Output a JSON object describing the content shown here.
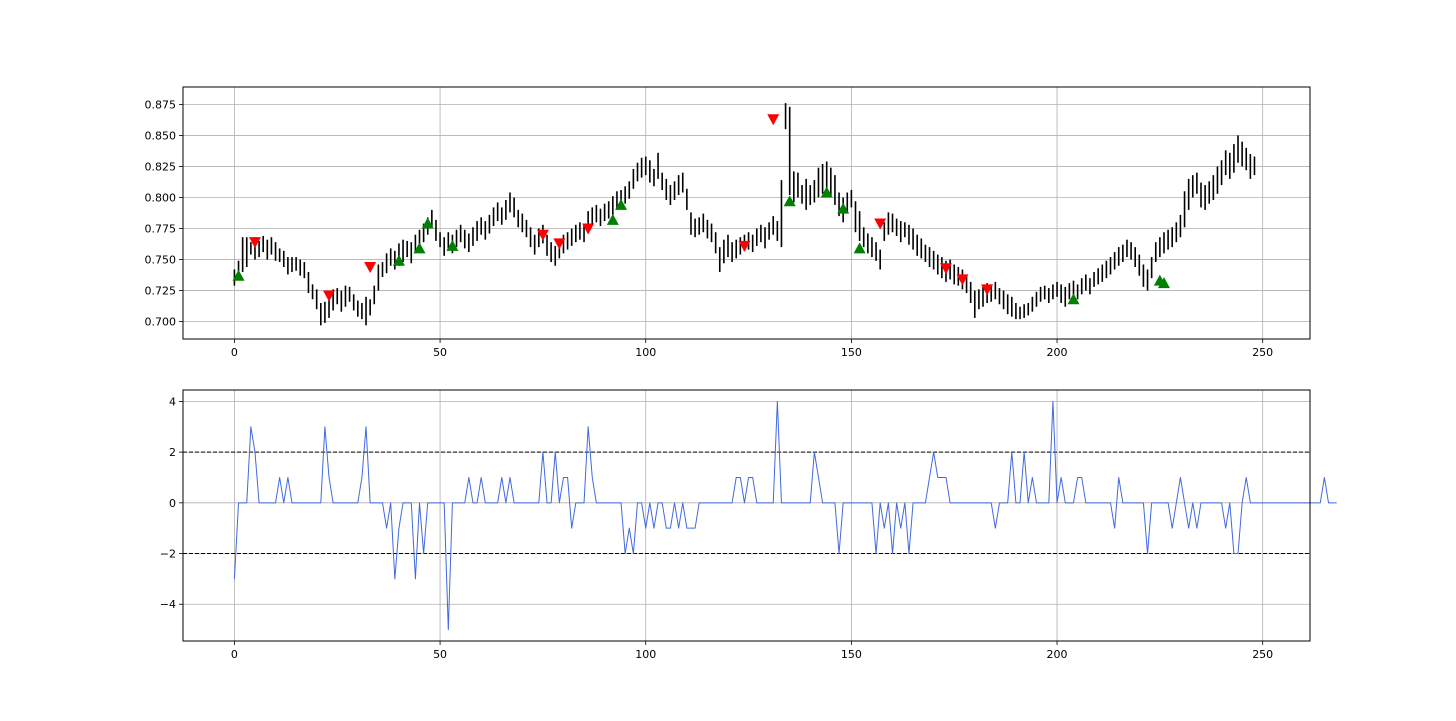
{
  "chart_data": [
    {
      "type": "ohlc",
      "xlim": [
        -12.5,
        261.5
      ],
      "ylim": [
        0.686,
        0.889
      ],
      "grid": true,
      "xticks": [
        0,
        50,
        100,
        150,
        200,
        250
      ],
      "yticks": [
        0.7,
        0.725,
        0.75,
        0.775,
        0.8,
        0.825,
        0.85,
        0.875
      ],
      "xtick_labels": [
        "0",
        "50",
        "100",
        "150",
        "200",
        "250"
      ],
      "ytick_labels": [
        "0.700",
        "0.725",
        "0.750",
        "0.775",
        "0.800",
        "0.825",
        "0.850",
        "0.875"
      ],
      "bar_color": "#000000",
      "bar_ranges": [
        [
          0.729,
          0.742
        ],
        [
          0.737,
          0.749
        ],
        [
          0.74,
          0.768
        ],
        [
          0.744,
          0.768
        ],
        [
          0.754,
          0.764
        ],
        [
          0.75,
          0.768
        ],
        [
          0.752,
          0.765
        ],
        [
          0.756,
          0.769
        ],
        [
          0.75,
          0.766
        ],
        [
          0.754,
          0.768
        ],
        [
          0.749,
          0.764
        ],
        [
          0.748,
          0.759
        ],
        [
          0.744,
          0.757
        ],
        [
          0.738,
          0.752
        ],
        [
          0.74,
          0.752
        ],
        [
          0.741,
          0.752
        ],
        [
          0.737,
          0.75
        ],
        [
          0.735,
          0.748
        ],
        [
          0.723,
          0.74
        ],
        [
          0.718,
          0.73
        ],
        [
          0.71,
          0.726
        ],
        [
          0.697,
          0.715
        ],
        [
          0.699,
          0.716
        ],
        [
          0.703,
          0.725
        ],
        [
          0.709,
          0.726
        ],
        [
          0.714,
          0.727
        ],
        [
          0.708,
          0.725
        ],
        [
          0.712,
          0.729
        ],
        [
          0.716,
          0.728
        ],
        [
          0.709,
          0.722
        ],
        [
          0.704,
          0.717
        ],
        [
          0.702,
          0.715
        ],
        [
          0.697,
          0.72
        ],
        [
          0.705,
          0.718
        ],
        [
          0.714,
          0.729
        ],
        [
          0.725,
          0.746
        ],
        [
          0.736,
          0.748
        ],
        [
          0.739,
          0.755
        ],
        [
          0.745,
          0.759
        ],
        [
          0.742,
          0.757
        ],
        [
          0.745,
          0.763
        ],
        [
          0.748,
          0.766
        ],
        [
          0.752,
          0.765
        ],
        [
          0.747,
          0.764
        ],
        [
          0.756,
          0.77
        ],
        [
          0.76,
          0.774
        ],
        [
          0.764,
          0.779
        ],
        [
          0.77,
          0.784
        ],
        [
          0.776,
          0.79
        ],
        [
          0.765,
          0.782
        ],
        [
          0.76,
          0.772
        ],
        [
          0.753,
          0.768
        ],
        [
          0.758,
          0.772
        ],
        [
          0.755,
          0.77
        ],
        [
          0.76,
          0.774
        ],
        [
          0.764,
          0.778
        ],
        [
          0.759,
          0.774
        ],
        [
          0.756,
          0.771
        ],
        [
          0.761,
          0.776
        ],
        [
          0.765,
          0.781
        ],
        [
          0.77,
          0.784
        ],
        [
          0.766,
          0.781
        ],
        [
          0.771,
          0.786
        ],
        [
          0.777,
          0.792
        ],
        [
          0.781,
          0.796
        ],
        [
          0.778,
          0.792
        ],
        [
          0.782,
          0.798
        ],
        [
          0.788,
          0.804
        ],
        [
          0.784,
          0.8
        ],
        [
          0.776,
          0.79
        ],
        [
          0.772,
          0.787
        ],
        [
          0.768,
          0.782
        ],
        [
          0.76,
          0.776
        ],
        [
          0.754,
          0.77
        ],
        [
          0.76,
          0.775
        ],
        [
          0.763,
          0.778
        ],
        [
          0.753,
          0.77
        ],
        [
          0.748,
          0.764
        ],
        [
          0.745,
          0.761
        ],
        [
          0.751,
          0.767
        ],
        [
          0.755,
          0.77
        ],
        [
          0.758,
          0.772
        ],
        [
          0.761,
          0.775
        ],
        [
          0.764,
          0.778
        ],
        [
          0.766,
          0.78
        ],
        [
          0.764,
          0.778
        ],
        [
          0.774,
          0.789
        ],
        [
          0.778,
          0.792
        ],
        [
          0.78,
          0.794
        ],
        [
          0.777,
          0.791
        ],
        [
          0.781,
          0.795
        ],
        [
          0.783,
          0.797
        ],
        [
          0.786,
          0.801
        ],
        [
          0.79,
          0.805
        ],
        [
          0.792,
          0.806
        ],
        [
          0.795,
          0.809
        ],
        [
          0.799,
          0.813
        ],
        [
          0.807,
          0.823
        ],
        [
          0.813,
          0.828
        ],
        [
          0.816,
          0.832
        ],
        [
          0.818,
          0.833
        ],
        [
          0.812,
          0.83
        ],
        [
          0.809,
          0.823
        ],
        [
          0.815,
          0.836
        ],
        [
          0.806,
          0.82
        ],
        [
          0.798,
          0.815
        ],
        [
          0.794,
          0.81
        ],
        [
          0.798,
          0.813
        ],
        [
          0.802,
          0.818
        ],
        [
          0.804,
          0.82
        ],
        [
          0.79,
          0.807
        ],
        [
          0.77,
          0.788
        ],
        [
          0.768,
          0.783
        ],
        [
          0.77,
          0.784
        ],
        [
          0.772,
          0.787
        ],
        [
          0.767,
          0.782
        ],
        [
          0.764,
          0.779
        ],
        [
          0.755,
          0.772
        ],
        [
          0.74,
          0.76
        ],
        [
          0.747,
          0.766
        ],
        [
          0.752,
          0.77
        ],
        [
          0.748,
          0.764
        ],
        [
          0.751,
          0.766
        ],
        [
          0.754,
          0.768
        ],
        [
          0.757,
          0.77
        ],
        [
          0.758,
          0.772
        ],
        [
          0.756,
          0.77
        ],
        [
          0.761,
          0.775
        ],
        [
          0.764,
          0.778
        ],
        [
          0.759,
          0.776
        ],
        [
          0.766,
          0.78
        ],
        [
          0.77,
          0.785
        ],
        [
          0.765,
          0.781
        ],
        [
          0.76,
          0.814
        ],
        [
          0.855,
          0.876
        ],
        [
          0.802,
          0.873
        ],
        [
          0.796,
          0.821
        ],
        [
          0.8,
          0.82
        ],
        [
          0.795,
          0.81
        ],
        [
          0.79,
          0.815
        ],
        [
          0.794,
          0.81
        ],
        [
          0.796,
          0.814
        ],
        [
          0.8,
          0.824
        ],
        [
          0.803,
          0.827
        ],
        [
          0.805,
          0.829
        ],
        [
          0.8,
          0.824
        ],
        [
          0.794,
          0.818
        ],
        [
          0.785,
          0.804
        ],
        [
          0.78,
          0.8
        ],
        [
          0.788,
          0.804
        ],
        [
          0.792,
          0.806
        ],
        [
          0.772,
          0.797
        ],
        [
          0.765,
          0.789
        ],
        [
          0.76,
          0.776
        ],
        [
          0.755,
          0.771
        ],
        [
          0.752,
          0.768
        ],
        [
          0.749,
          0.764
        ],
        [
          0.742,
          0.758
        ],
        [
          0.765,
          0.78
        ],
        [
          0.77,
          0.788
        ],
        [
          0.772,
          0.787
        ],
        [
          0.769,
          0.783
        ],
        [
          0.764,
          0.781
        ],
        [
          0.768,
          0.78
        ],
        [
          0.762,
          0.778
        ],
        [
          0.758,
          0.775
        ],
        [
          0.753,
          0.77
        ],
        [
          0.751,
          0.767
        ],
        [
          0.748,
          0.762
        ],
        [
          0.744,
          0.76
        ],
        [
          0.742,
          0.757
        ],
        [
          0.738,
          0.754
        ],
        [
          0.735,
          0.752
        ],
        [
          0.732,
          0.749
        ],
        [
          0.734,
          0.75
        ],
        [
          0.73,
          0.746
        ],
        [
          0.729,
          0.744
        ],
        [
          0.726,
          0.742
        ],
        [
          0.723,
          0.738
        ],
        [
          0.715,
          0.732
        ],
        [
          0.703,
          0.725
        ],
        [
          0.71,
          0.726
        ],
        [
          0.712,
          0.728
        ],
        [
          0.715,
          0.731
        ],
        [
          0.716,
          0.73
        ],
        [
          0.718,
          0.732
        ],
        [
          0.714,
          0.727
        ],
        [
          0.71,
          0.725
        ],
        [
          0.706,
          0.722
        ],
        [
          0.704,
          0.72
        ],
        [
          0.702,
          0.715
        ],
        [
          0.702,
          0.712
        ],
        [
          0.703,
          0.714
        ],
        [
          0.705,
          0.715
        ],
        [
          0.708,
          0.72
        ],
        [
          0.712,
          0.724
        ],
        [
          0.716,
          0.728
        ],
        [
          0.718,
          0.729
        ],
        [
          0.715,
          0.727
        ],
        [
          0.718,
          0.73
        ],
        [
          0.72,
          0.732
        ],
        [
          0.715,
          0.73
        ],
        [
          0.712,
          0.728
        ],
        [
          0.718,
          0.731
        ],
        [
          0.72,
          0.733
        ],
        [
          0.718,
          0.73
        ],
        [
          0.722,
          0.735
        ],
        [
          0.725,
          0.738
        ],
        [
          0.722,
          0.735
        ],
        [
          0.728,
          0.74
        ],
        [
          0.73,
          0.743
        ],
        [
          0.732,
          0.746
        ],
        [
          0.735,
          0.749
        ],
        [
          0.738,
          0.752
        ],
        [
          0.742,
          0.756
        ],
        [
          0.745,
          0.76
        ],
        [
          0.748,
          0.762
        ],
        [
          0.752,
          0.766
        ],
        [
          0.75,
          0.764
        ],
        [
          0.744,
          0.76
        ],
        [
          0.737,
          0.754
        ],
        [
          0.728,
          0.746
        ],
        [
          0.725,
          0.742
        ],
        [
          0.735,
          0.752
        ],
        [
          0.748,
          0.764
        ],
        [
          0.752,
          0.768
        ],
        [
          0.755,
          0.772
        ],
        [
          0.758,
          0.774
        ],
        [
          0.76,
          0.776
        ],
        [
          0.764,
          0.78
        ],
        [
          0.768,
          0.786
        ],
        [
          0.776,
          0.805
        ],
        [
          0.79,
          0.815
        ],
        [
          0.8,
          0.818
        ],
        [
          0.803,
          0.82
        ],
        [
          0.792,
          0.812
        ],
        [
          0.79,
          0.81
        ],
        [
          0.795,
          0.813
        ],
        [
          0.798,
          0.818
        ],
        [
          0.803,
          0.825
        ],
        [
          0.81,
          0.83
        ],
        [
          0.818,
          0.838
        ],
        [
          0.815,
          0.836
        ],
        [
          0.82,
          0.843
        ],
        [
          0.828,
          0.85
        ],
        [
          0.825,
          0.845
        ],
        [
          0.822,
          0.84
        ],
        [
          0.815,
          0.835
        ],
        [
          0.818,
          0.833
        ]
      ],
      "buy_signals": {
        "x": [
          1,
          40,
          45,
          47,
          53,
          92,
          94,
          135,
          144,
          148,
          152,
          204,
          225,
          226
        ],
        "y": [
          0.737,
          0.749,
          0.759,
          0.779,
          0.761,
          0.782,
          0.794,
          0.797,
          0.804,
          0.791,
          0.759,
          0.718,
          0.733,
          0.731
        ],
        "color": "#008000",
        "marker": "triangle-up"
      },
      "sell_signals": {
        "x": [
          5,
          23,
          33,
          75,
          79,
          86,
          124,
          131,
          157,
          173,
          177,
          183
        ],
        "y": [
          0.764,
          0.721,
          0.744,
          0.77,
          0.763,
          0.775,
          0.761,
          0.863,
          0.779,
          0.743,
          0.734,
          0.726
        ],
        "color": "#ff0000",
        "marker": "triangle-down"
      }
    },
    {
      "type": "line",
      "xlim": [
        -12.5,
        261.5
      ],
      "ylim": [
        -5.45,
        4.45
      ],
      "grid": true,
      "xticks": [
        0,
        50,
        100,
        150,
        200,
        250
      ],
      "yticks": [
        -4,
        -2,
        0,
        2,
        4
      ],
      "xtick_labels": [
        "0",
        "50",
        "100",
        "150",
        "200",
        "250"
      ],
      "ytick_labels": [
        "−4",
        "−2",
        "0",
        "2",
        "4"
      ],
      "line_color": "#4169e1",
      "hlines": [
        2,
        -2
      ],
      "hline_color": "#000000",
      "hline_style": "dashed",
      "values": [
        -3,
        0,
        0,
        0,
        3,
        2,
        0,
        0,
        0,
        0,
        0,
        1,
        0,
        1,
        0,
        0,
        0,
        0,
        0,
        0,
        0,
        0,
        3,
        1,
        0,
        0,
        0,
        0,
        0,
        0,
        0,
        1,
        3,
        0,
        0,
        0,
        0,
        -1,
        0,
        -3,
        -1,
        0,
        0,
        0,
        -3,
        0,
        -2,
        0,
        0,
        0,
        0,
        0,
        -5,
        0,
        0,
        0,
        0,
        1,
        0,
        0,
        1,
        0,
        0,
        0,
        0,
        1,
        0,
        1,
        0,
        0,
        0,
        0,
        0,
        0,
        0,
        2,
        0,
        0,
        2,
        0,
        1,
        1,
        -1,
        0,
        0,
        0,
        3,
        1,
        0,
        0,
        0,
        0,
        0,
        0,
        0,
        -2,
        -1,
        -2,
        0,
        0,
        -1,
        0,
        -1,
        0,
        0,
        -1,
        -1,
        0,
        -1,
        0,
        -1,
        -1,
        -1,
        0,
        0,
        0,
        0,
        0,
        0,
        0,
        0,
        0,
        1,
        1,
        0,
        1,
        1,
        0,
        0,
        0,
        0,
        0,
        4,
        0,
        0,
        0,
        0,
        0,
        0,
        0,
        0,
        2,
        1,
        0,
        0,
        0,
        0,
        -2,
        0,
        0,
        0,
        0,
        0,
        0,
        0,
        0,
        -2,
        0,
        -1,
        0,
        -2,
        0,
        -1,
        0,
        -2,
        0,
        0,
        0,
        0,
        1,
        2,
        1,
        1,
        1,
        0,
        0,
        0,
        0,
        0,
        0,
        0,
        0,
        0,
        0,
        0,
        -1,
        0,
        0,
        0,
        2,
        0,
        0,
        2,
        0,
        1,
        0,
        0,
        0,
        0,
        4,
        0,
        1,
        0,
        0,
        0,
        1,
        1,
        0,
        0,
        0,
        0,
        0,
        0,
        0,
        -1,
        1,
        0,
        0,
        0,
        0,
        0,
        0,
        -2,
        0,
        0,
        0,
        0,
        0,
        -1,
        0,
        1,
        0,
        -1,
        0,
        -1,
        0,
        0,
        0,
        0,
        0,
        0,
        -1,
        0,
        -2,
        -2,
        0,
        1,
        0,
        0,
        0,
        0,
        0,
        0,
        0,
        0,
        0,
        0,
        0,
        0,
        0,
        0,
        0,
        0,
        0,
        0,
        1,
        0,
        0,
        0
      ]
    }
  ]
}
